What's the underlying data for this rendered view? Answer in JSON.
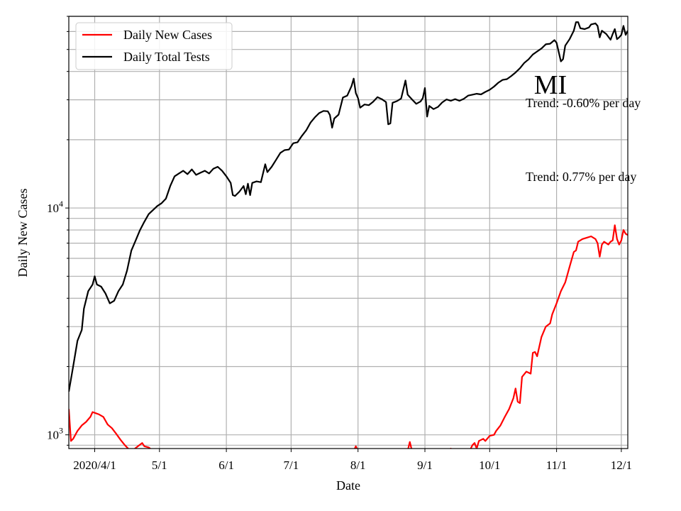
{
  "chart_data": {
    "type": "line",
    "title": "MI",
    "xlabel": "Date",
    "ylabel": "Daily New Cases",
    "yscale": "log",
    "ylim": [
      870,
      70000
    ],
    "xlim": [
      "2020-03-20",
      "2020-12-04"
    ],
    "grid": true,
    "legend": "top-left",
    "x_ticks": [
      {
        "date": "2020-04-01",
        "label": "2020/4/1"
      },
      {
        "date": "2020-05-01",
        "label": "5/1"
      },
      {
        "date": "2020-06-01",
        "label": "6/1"
      },
      {
        "date": "2020-07-01",
        "label": "7/1"
      },
      {
        "date": "2020-08-01",
        "label": "8/1"
      },
      {
        "date": "2020-09-01",
        "label": "9/1"
      },
      {
        "date": "2020-10-01",
        "label": "10/1"
      },
      {
        "date": "2020-11-01",
        "label": "11/1"
      },
      {
        "date": "2020-12-01",
        "label": "12/1"
      }
    ],
    "y_ticks": [
      {
        "value": 1000,
        "base": "10",
        "exp": "3"
      },
      {
        "value": 10000,
        "base": "10",
        "exp": "4"
      }
    ],
    "annotations": [
      {
        "text": "Trend: -0.60% per day"
      },
      {
        "text": "Trend: 0.77% per day"
      }
    ],
    "series": [
      {
        "name": "Daily New Cases",
        "color": "#ff0000",
        "points": [
          [
            "2020-03-20",
            1300
          ],
          [
            "2020-03-21",
            940
          ],
          [
            "2020-03-22",
            960
          ],
          [
            "2020-03-24",
            1040
          ],
          [
            "2020-03-26",
            1100
          ],
          [
            "2020-03-28",
            1140
          ],
          [
            "2020-03-30",
            1200
          ],
          [
            "2020-03-31",
            1260
          ],
          [
            "2020-04-01",
            1250
          ],
          [
            "2020-04-03",
            1230
          ],
          [
            "2020-04-05",
            1200
          ],
          [
            "2020-04-07",
            1110
          ],
          [
            "2020-04-09",
            1070
          ],
          [
            "2020-04-11",
            1010
          ],
          [
            "2020-04-13",
            950
          ],
          [
            "2020-04-15",
            900
          ],
          [
            "2020-04-17",
            860
          ],
          [
            "2020-04-19",
            860
          ],
          [
            "2020-04-21",
            890
          ],
          [
            "2020-04-23",
            920
          ],
          [
            "2020-04-24",
            890
          ],
          [
            "2020-04-26",
            880
          ],
          [
            "2020-04-28",
            850
          ],
          [
            "2020-07-30",
            850
          ],
          [
            "2020-07-31",
            890
          ],
          [
            "2020-08-01",
            850
          ],
          [
            "2020-08-24",
            850
          ],
          [
            "2020-08-25",
            930
          ],
          [
            "2020-08-26",
            850
          ],
          [
            "2020-08-31",
            850
          ],
          [
            "2020-09-01",
            860
          ],
          [
            "2020-09-02",
            850
          ],
          [
            "2020-09-12",
            850
          ],
          [
            "2020-09-13",
            870
          ],
          [
            "2020-09-14",
            850
          ],
          [
            "2020-09-22",
            860
          ],
          [
            "2020-09-23",
            900
          ],
          [
            "2020-09-24",
            920
          ],
          [
            "2020-09-25",
            870
          ],
          [
            "2020-09-26",
            940
          ],
          [
            "2020-09-28",
            960
          ],
          [
            "2020-09-29",
            940
          ],
          [
            "2020-10-01",
            990
          ],
          [
            "2020-10-03",
            1000
          ],
          [
            "2020-10-04",
            1040
          ],
          [
            "2020-10-06",
            1100
          ],
          [
            "2020-10-08",
            1200
          ],
          [
            "2020-10-10",
            1300
          ],
          [
            "2020-10-12",
            1450
          ],
          [
            "2020-10-13",
            1600
          ],
          [
            "2020-10-14",
            1400
          ],
          [
            "2020-10-15",
            1380
          ],
          [
            "2020-10-16",
            1800
          ],
          [
            "2020-10-18",
            1900
          ],
          [
            "2020-10-20",
            1860
          ],
          [
            "2020-10-21",
            2300
          ],
          [
            "2020-10-22",
            2320
          ],
          [
            "2020-10-23",
            2220
          ],
          [
            "2020-10-25",
            2700
          ],
          [
            "2020-10-27",
            3000
          ],
          [
            "2020-10-29",
            3100
          ],
          [
            "2020-10-30",
            3400
          ],
          [
            "2020-11-01",
            3800
          ],
          [
            "2020-11-03",
            4300
          ],
          [
            "2020-11-05",
            4700
          ],
          [
            "2020-11-07",
            5500
          ],
          [
            "2020-11-09",
            6400
          ],
          [
            "2020-11-10",
            6500
          ],
          [
            "2020-11-11",
            7100
          ],
          [
            "2020-11-13",
            7300
          ],
          [
            "2020-11-15",
            7400
          ],
          [
            "2020-11-17",
            7500
          ],
          [
            "2020-11-19",
            7300
          ],
          [
            "2020-11-20",
            7000
          ],
          [
            "2020-11-21",
            6100
          ],
          [
            "2020-11-22",
            6900
          ],
          [
            "2020-11-23",
            7100
          ],
          [
            "2020-11-24",
            7000
          ],
          [
            "2020-11-25",
            6900
          ],
          [
            "2020-11-26",
            7100
          ],
          [
            "2020-11-27",
            7200
          ],
          [
            "2020-11-28",
            8400
          ],
          [
            "2020-11-29",
            7300
          ],
          [
            "2020-11-30",
            6900
          ],
          [
            "2020-12-01",
            7200
          ],
          [
            "2020-12-02",
            8000
          ],
          [
            "2020-12-03",
            7700
          ],
          [
            "2020-12-04",
            7600
          ]
        ]
      },
      {
        "name": "Daily Total Tests",
        "color": "#000000",
        "points": [
          [
            "2020-03-20",
            1550
          ],
          [
            "2020-03-22",
            2000
          ],
          [
            "2020-03-24",
            2600
          ],
          [
            "2020-03-26",
            2900
          ],
          [
            "2020-03-27",
            3600
          ],
          [
            "2020-03-29",
            4300
          ],
          [
            "2020-03-31",
            4600
          ],
          [
            "2020-04-01",
            5000
          ],
          [
            "2020-04-02",
            4600
          ],
          [
            "2020-04-04",
            4500
          ],
          [
            "2020-04-06",
            4200
          ],
          [
            "2020-04-08",
            3800
          ],
          [
            "2020-04-10",
            3900
          ],
          [
            "2020-04-12",
            4300
          ],
          [
            "2020-04-14",
            4600
          ],
          [
            "2020-04-16",
            5300
          ],
          [
            "2020-04-18",
            6500
          ],
          [
            "2020-04-20",
            7200
          ],
          [
            "2020-04-22",
            8000
          ],
          [
            "2020-04-24",
            8700
          ],
          [
            "2020-04-26",
            9400
          ],
          [
            "2020-04-28",
            9800
          ],
          [
            "2020-04-30",
            10200
          ],
          [
            "2020-05-02",
            10500
          ],
          [
            "2020-05-04",
            11000
          ],
          [
            "2020-05-06",
            12500
          ],
          [
            "2020-05-08",
            13800
          ],
          [
            "2020-05-10",
            14200
          ],
          [
            "2020-05-12",
            14600
          ],
          [
            "2020-05-14",
            14100
          ],
          [
            "2020-05-16",
            14800
          ],
          [
            "2020-05-18",
            14000
          ],
          [
            "2020-05-20",
            14300
          ],
          [
            "2020-05-22",
            14600
          ],
          [
            "2020-05-24",
            14200
          ],
          [
            "2020-05-26",
            14900
          ],
          [
            "2020-05-28",
            15200
          ],
          [
            "2020-05-30",
            14600
          ],
          [
            "2020-06-01",
            13800
          ],
          [
            "2020-06-03",
            12900
          ],
          [
            "2020-06-04",
            11400
          ],
          [
            "2020-06-05",
            11300
          ],
          [
            "2020-06-07",
            11800
          ],
          [
            "2020-06-09",
            12500
          ],
          [
            "2020-06-10",
            11500
          ],
          [
            "2020-06-11",
            12800
          ],
          [
            "2020-06-12",
            11400
          ],
          [
            "2020-06-13",
            12900
          ],
          [
            "2020-06-15",
            13100
          ],
          [
            "2020-06-17",
            13000
          ],
          [
            "2020-06-19",
            15600
          ],
          [
            "2020-06-20",
            14400
          ],
          [
            "2020-06-22",
            15200
          ],
          [
            "2020-06-24",
            16300
          ],
          [
            "2020-06-26",
            17500
          ],
          [
            "2020-06-28",
            18000
          ],
          [
            "2020-06-30",
            18100
          ],
          [
            "2020-07-02",
            19300
          ],
          [
            "2020-07-04",
            19500
          ],
          [
            "2020-07-06",
            20800
          ],
          [
            "2020-07-08",
            22000
          ],
          [
            "2020-07-10",
            23800
          ],
          [
            "2020-07-12",
            25100
          ],
          [
            "2020-07-14",
            26200
          ],
          [
            "2020-07-16",
            26800
          ],
          [
            "2020-07-18",
            26700
          ],
          [
            "2020-07-19",
            25700
          ],
          [
            "2020-07-20",
            22600
          ],
          [
            "2020-07-21",
            24800
          ],
          [
            "2020-07-23",
            25800
          ],
          [
            "2020-07-25",
            30700
          ],
          [
            "2020-07-27",
            31300
          ],
          [
            "2020-07-29",
            34500
          ],
          [
            "2020-07-30",
            37200
          ],
          [
            "2020-07-31",
            32100
          ],
          [
            "2020-08-01",
            30500
          ],
          [
            "2020-08-02",
            27700
          ],
          [
            "2020-08-04",
            28600
          ],
          [
            "2020-08-06",
            28400
          ],
          [
            "2020-08-08",
            29400
          ],
          [
            "2020-08-10",
            30800
          ],
          [
            "2020-08-12",
            30200
          ],
          [
            "2020-08-14",
            29300
          ],
          [
            "2020-08-15",
            23400
          ],
          [
            "2020-08-16",
            23600
          ],
          [
            "2020-08-17",
            29100
          ],
          [
            "2020-08-19",
            29600
          ],
          [
            "2020-08-21",
            30400
          ],
          [
            "2020-08-23",
            36500
          ],
          [
            "2020-08-24",
            31600
          ],
          [
            "2020-08-26",
            30100
          ],
          [
            "2020-08-28",
            28800
          ],
          [
            "2020-08-30",
            29500
          ],
          [
            "2020-08-31",
            30500
          ],
          [
            "2020-09-01",
            33800
          ],
          [
            "2020-09-02",
            25300
          ],
          [
            "2020-09-03",
            28200
          ],
          [
            "2020-09-05",
            27300
          ],
          [
            "2020-09-07",
            27900
          ],
          [
            "2020-09-09",
            29200
          ],
          [
            "2020-09-11",
            30100
          ],
          [
            "2020-09-13",
            29700
          ],
          [
            "2020-09-15",
            30200
          ],
          [
            "2020-09-17",
            29700
          ],
          [
            "2020-09-19",
            30300
          ],
          [
            "2020-09-21",
            31300
          ],
          [
            "2020-09-23",
            31600
          ],
          [
            "2020-09-25",
            31900
          ],
          [
            "2020-09-27",
            31700
          ],
          [
            "2020-09-29",
            32500
          ],
          [
            "2020-10-01",
            33200
          ],
          [
            "2020-10-03",
            34300
          ],
          [
            "2020-10-05",
            35700
          ],
          [
            "2020-10-07",
            36700
          ],
          [
            "2020-10-09",
            37000
          ],
          [
            "2020-10-11",
            38200
          ],
          [
            "2020-10-13",
            39600
          ],
          [
            "2020-10-15",
            41300
          ],
          [
            "2020-10-17",
            43600
          ],
          [
            "2020-10-19",
            45200
          ],
          [
            "2020-10-21",
            47500
          ],
          [
            "2020-10-23",
            49000
          ],
          [
            "2020-10-25",
            50500
          ],
          [
            "2020-10-27",
            52700
          ],
          [
            "2020-10-29",
            53000
          ],
          [
            "2020-10-31",
            55000
          ],
          [
            "2020-11-01",
            53500
          ],
          [
            "2020-11-03",
            44300
          ],
          [
            "2020-11-04",
            45300
          ],
          [
            "2020-11-05",
            52000
          ],
          [
            "2020-11-07",
            55500
          ],
          [
            "2020-11-09",
            60500
          ],
          [
            "2020-11-10",
            66000
          ],
          [
            "2020-11-11",
            66000
          ],
          [
            "2020-11-12",
            62000
          ],
          [
            "2020-11-14",
            61500
          ],
          [
            "2020-11-16",
            62500
          ],
          [
            "2020-11-17",
            64500
          ],
          [
            "2020-11-19",
            65200
          ],
          [
            "2020-11-20",
            63500
          ],
          [
            "2020-11-21",
            56500
          ],
          [
            "2020-11-22",
            60500
          ],
          [
            "2020-11-24",
            58500
          ],
          [
            "2020-11-26",
            55200
          ],
          [
            "2020-11-27",
            58500
          ],
          [
            "2020-11-28",
            61500
          ],
          [
            "2020-11-29",
            55500
          ],
          [
            "2020-11-30",
            56500
          ],
          [
            "2020-12-01",
            58000
          ],
          [
            "2020-12-02",
            63500
          ],
          [
            "2020-12-03",
            58000
          ],
          [
            "2020-12-04",
            60500
          ]
        ]
      }
    ]
  }
}
